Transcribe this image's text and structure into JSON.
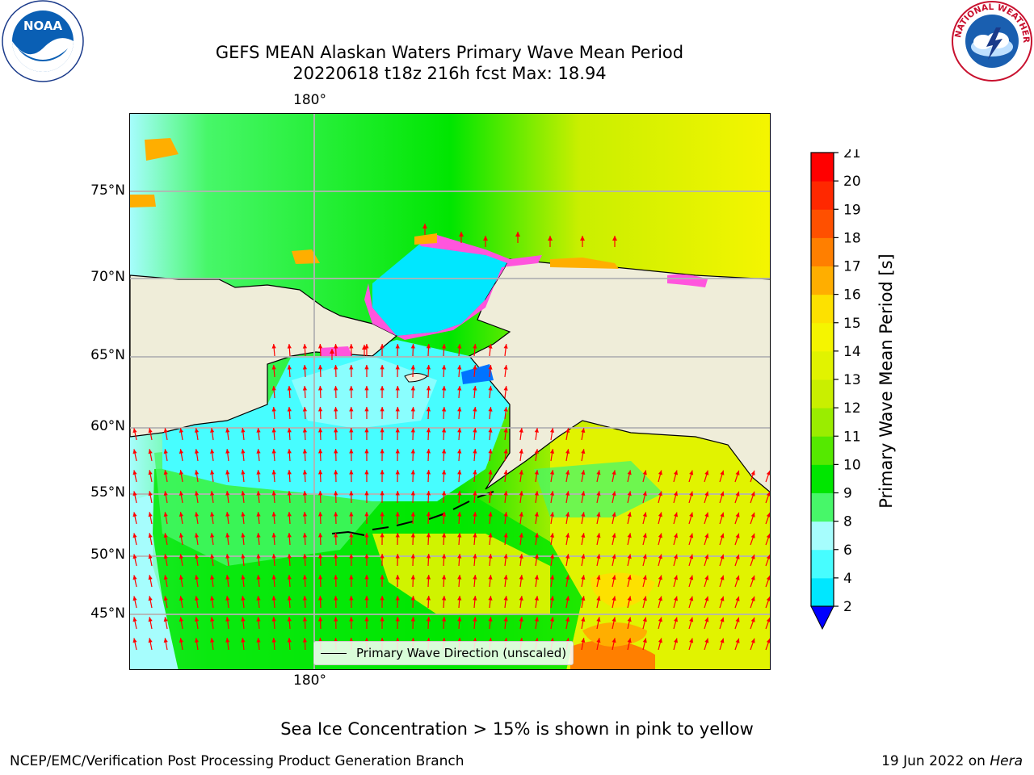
{
  "title": {
    "line1": "GEFS MEAN Alaskan Waters Primary Wave Mean Period",
    "line2": "20220618 t18z 216h fcst   Max: 18.94"
  },
  "map": {
    "lon_tick_top": "180°",
    "lon_tick_bottom": "180°",
    "lat_ticks": [
      {
        "label": "75°N"
      },
      {
        "label": "70°N"
      },
      {
        "label": "65°N"
      },
      {
        "label": "60°N"
      },
      {
        "label": "55°N"
      },
      {
        "label": "50°N"
      },
      {
        "label": "45°N"
      }
    ],
    "legend_label": "Primary Wave Direction (unscaled)",
    "colors": {
      "land": "#efedd9",
      "coast": "#000000",
      "grid": "#b3b3b3",
      "arrow": "#ff0000"
    }
  },
  "colorbar": {
    "label": "Primary Wave Mean Period [s]",
    "ticks": [
      "2",
      "4",
      "6",
      "8",
      "9",
      "10",
      "11",
      "12",
      "13",
      "14",
      "15",
      "16",
      "17",
      "18",
      "19",
      "20",
      "21"
    ],
    "colors": [
      "#0073ff",
      "#00e7ff",
      "#47fdff",
      "#a6fdfd",
      "#47f769",
      "#00e600",
      "#55e900",
      "#9aed00",
      "#c9ef00",
      "#e1f300",
      "#f5f500",
      "#fde100",
      "#ffae00",
      "#ff7f00",
      "#ff5000",
      "#ff2800",
      "#ff0000"
    ]
  },
  "footer": {
    "ice_note": "Sea Ice Concentration > 15% is shown in pink to yellow",
    "credit": "NCEP/EMC/Verification Post Processing Product Generation Branch",
    "date_prefix": "19 Jun 2022 on ",
    "date_host": "Hera"
  },
  "logos": {
    "noaa_text": "NOAA",
    "nws_text": "NATIONAL WEATHER SERVICE"
  }
}
